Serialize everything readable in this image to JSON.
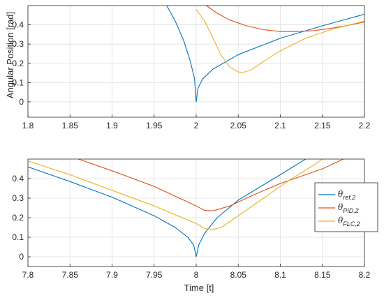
{
  "chart_data": [
    {
      "type": "line",
      "title": "",
      "xlabel": "",
      "ylabel": "Angular Position [rad]",
      "xlim": [
        1.8,
        2.2
      ],
      "ylim": [
        -0.08,
        0.5
      ],
      "grid": true,
      "xticks": [
        1.8,
        1.85,
        1.9,
        1.95,
        2,
        2.05,
        2.1,
        2.15,
        2.2
      ],
      "xtick_labels": [
        "1.8",
        "1.85",
        "1.9",
        "1.95",
        "2",
        "2.05",
        "2.1",
        "2.15",
        "2.2"
      ],
      "yticks": [
        0,
        0.1,
        0.2,
        0.3,
        0.4
      ],
      "ytick_labels": [
        "0",
        "0.1",
        "0.2",
        "0.3",
        "0.4"
      ],
      "series": [
        {
          "name": "θ_ref,2",
          "color": "#0072BD",
          "x": [
            1.965,
            1.975,
            1.985,
            1.993,
            1.998,
            2.0,
            2.002,
            2.008,
            2.02,
            2.05,
            2.1,
            2.15,
            2.2
          ],
          "y": [
            0.5,
            0.42,
            0.32,
            0.21,
            0.12,
            0.0,
            0.07,
            0.12,
            0.17,
            0.245,
            0.33,
            0.395,
            0.455
          ]
        },
        {
          "name": "θ_PID,2",
          "color": "#D95319",
          "x": [
            2.012,
            2.025,
            2.04,
            2.06,
            2.08,
            2.1,
            2.12,
            2.14,
            2.16,
            2.18,
            2.2
          ],
          "y": [
            0.5,
            0.46,
            0.425,
            0.395,
            0.375,
            0.365,
            0.365,
            0.37,
            0.382,
            0.397,
            0.415
          ]
        },
        {
          "name": "θ_FLC,2",
          "color": "#EDB120",
          "x": [
            2.0,
            2.01,
            2.02,
            2.03,
            2.04,
            2.05,
            2.055,
            2.065,
            2.08,
            2.1,
            2.13,
            2.16,
            2.2
          ],
          "y": [
            0.48,
            0.42,
            0.33,
            0.24,
            0.18,
            0.155,
            0.152,
            0.165,
            0.21,
            0.265,
            0.33,
            0.375,
            0.42
          ]
        }
      ]
    },
    {
      "type": "line",
      "title": "",
      "xlabel": "Time [t]",
      "ylabel": "",
      "xlim": [
        7.8,
        8.2
      ],
      "ylim": [
        -0.05,
        0.5
      ],
      "grid": true,
      "legend_position": "right",
      "xticks": [
        7.8,
        7.85,
        7.9,
        7.95,
        8,
        8.05,
        8.1,
        8.15,
        8.2
      ],
      "xtick_labels": [
        "7.8",
        "7.85",
        "7.9",
        "7.95",
        "8",
        "8.05",
        "8.1",
        "8.15",
        "8.2"
      ],
      "yticks": [
        0,
        0.1,
        0.2,
        0.3,
        0.4
      ],
      "ytick_labels": [
        "0",
        "0.1",
        "0.2",
        "0.3",
        "0.4"
      ],
      "series": [
        {
          "name": "θ_ref,2",
          "color": "#0072BD",
          "x": [
            7.8,
            7.85,
            7.9,
            7.95,
            7.975,
            7.99,
            7.997,
            8.0,
            8.003,
            8.01,
            8.025,
            8.05,
            8.1,
            8.13
          ],
          "y": [
            0.46,
            0.385,
            0.305,
            0.21,
            0.15,
            0.1,
            0.06,
            0.0,
            0.06,
            0.12,
            0.2,
            0.29,
            0.42,
            0.5
          ]
        },
        {
          "name": "θ_PID,2",
          "color": "#D95319",
          "x": [
            7.86,
            7.9,
            7.95,
            8.0,
            8.01,
            8.02,
            8.04,
            8.07,
            8.1,
            8.15,
            8.175
          ],
          "y": [
            0.5,
            0.44,
            0.36,
            0.26,
            0.237,
            0.235,
            0.26,
            0.32,
            0.375,
            0.45,
            0.5
          ]
        },
        {
          "name": "θ_FLC,2",
          "color": "#EDB120",
          "x": [
            7.8,
            7.85,
            7.9,
            7.95,
            8.0,
            8.01,
            8.02,
            8.03,
            8.05,
            8.08,
            8.11,
            8.14,
            8.15
          ],
          "y": [
            0.49,
            0.42,
            0.34,
            0.26,
            0.17,
            0.145,
            0.14,
            0.15,
            0.21,
            0.3,
            0.39,
            0.47,
            0.5
          ]
        }
      ]
    }
  ],
  "legend": [
    {
      "main": "θ",
      "sub": "ref,2",
      "color": "#0072BD"
    },
    {
      "main": "θ",
      "sub": "PID,2",
      "color": "#D95319"
    },
    {
      "main": "θ",
      "sub": "FLC,2",
      "color": "#EDB120"
    }
  ]
}
